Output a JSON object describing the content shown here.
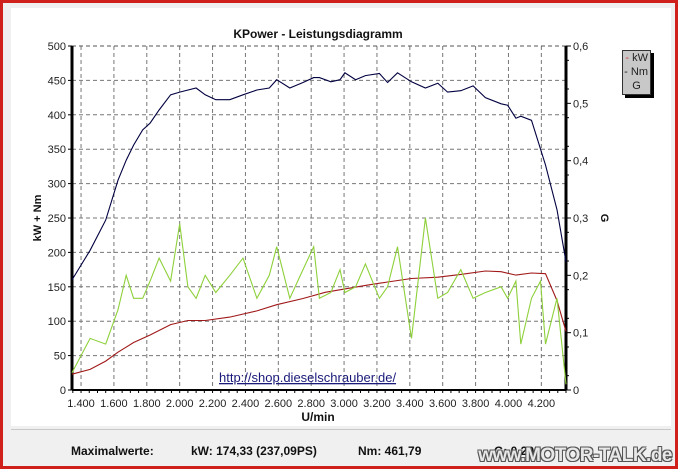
{
  "chart_data": {
    "type": "line",
    "title": "KPower - Leistungsdiagramm",
    "xlabel": "U/min",
    "ylabel": "kW + Nm",
    "y2label": "G",
    "xlim": [
      1345,
      4350
    ],
    "ylim": [
      0,
      500
    ],
    "y2lim": [
      0,
      0.6
    ],
    "grid": true,
    "x_ticks": [
      "1.400",
      "1.600",
      "1.800",
      "2.000",
      "2.200",
      "2.400",
      "2.600",
      "2.800",
      "3.000",
      "3.200",
      "3.400",
      "3.600",
      "3.800",
      "4.000",
      "4.200"
    ],
    "y_ticks": [
      "0",
      "50",
      "100",
      "150",
      "200",
      "250",
      "300",
      "350",
      "400",
      "450",
      "500"
    ],
    "y2_ticks": [
      "0",
      "0,1",
      "0,2",
      "0,3",
      "0,4",
      "0,5",
      "0,6"
    ],
    "legend": [
      "kW",
      "Nm",
      "G"
    ],
    "legend_position": "right",
    "annotation": "http://shop.dieselschrauber.de/",
    "series": [
      {
        "name": "Nm",
        "color": "#000040",
        "axis": "left",
        "x": [
          1345,
          1455,
          1550,
          1625,
          1675,
          1720,
          1775,
          1820,
          1875,
          1945,
          2000,
          2100,
          2155,
          2220,
          2305,
          2385,
          2470,
          2545,
          2590,
          2670,
          2750,
          2815,
          2850,
          2920,
          2975,
          3005,
          3070,
          3130,
          3215,
          3265,
          3325,
          3410,
          3495,
          3570,
          3630,
          3710,
          3785,
          3860,
          3955,
          3995,
          4045,
          4075,
          4140,
          4225,
          4295,
          4350
        ],
        "values": [
          160,
          203,
          247,
          305,
          334,
          356,
          378,
          388,
          407,
          429,
          433,
          439,
          429,
          422,
          422,
          429,
          436,
          439,
          451,
          439,
          447,
          454,
          454,
          448,
          451,
          461,
          451,
          457,
          460,
          447,
          461,
          448,
          439,
          446,
          433,
          435,
          442,
          425,
          416,
          414,
          395,
          398,
          392,
          327,
          262,
          186
        ]
      },
      {
        "name": "kW",
        "color": "#a01818",
        "axis": "left",
        "x": [
          1345,
          1455,
          1550,
          1625,
          1720,
          1820,
          1945,
          2050,
          2155,
          2305,
          2470,
          2590,
          2750,
          2885,
          3005,
          3130,
          3265,
          3410,
          3570,
          3710,
          3860,
          3955,
          4045,
          4140,
          4225,
          4295,
          4350
        ],
        "values": [
          23,
          30,
          42,
          55,
          69,
          80,
          95,
          101,
          101,
          106,
          115,
          124,
          133,
          142,
          147,
          152,
          157,
          162,
          164,
          168,
          173,
          172,
          167,
          170,
          169,
          130,
          85
        ]
      },
      {
        "name": "G",
        "color": "#8ed03a",
        "axis": "right",
        "x": [
          1345,
          1455,
          1550,
          1625,
          1675,
          1720,
          1775,
          1820,
          1875,
          1945,
          2000,
          2050,
          2100,
          2155,
          2220,
          2305,
          2385,
          2470,
          2545,
          2590,
          2670,
          2750,
          2815,
          2850,
          2920,
          2975,
          3005,
          3070,
          3130,
          3215,
          3265,
          3325,
          3410,
          3495,
          3570,
          3630,
          3710,
          3785,
          3860,
          3955,
          3995,
          4045,
          4075,
          4140,
          4195,
          4225,
          4295,
          4350
        ],
        "values": [
          0.03,
          0.09,
          0.08,
          0.14,
          0.2,
          0.16,
          0.16,
          0.19,
          0.23,
          0.19,
          0.29,
          0.18,
          0.16,
          0.2,
          0.17,
          0.2,
          0.23,
          0.16,
          0.2,
          0.25,
          0.16,
          0.21,
          0.25,
          0.16,
          0.17,
          0.21,
          0.17,
          0.18,
          0.22,
          0.16,
          0.18,
          0.25,
          0.09,
          0.3,
          0.16,
          0.17,
          0.21,
          0.16,
          0.17,
          0.18,
          0.16,
          0.19,
          0.08,
          0.16,
          0.19,
          0.08,
          0.16,
          0.01
        ]
      }
    ]
  },
  "footer": {
    "label": "Maximalwerte:",
    "kw": "kW: 174,33 (237,09PS)",
    "nm": "Nm: 461,79",
    "g": "G: 0,29"
  },
  "legend_items": [
    "kW",
    "Nm",
    "G"
  ],
  "watermark": "www.MOTOR-TALK.de"
}
